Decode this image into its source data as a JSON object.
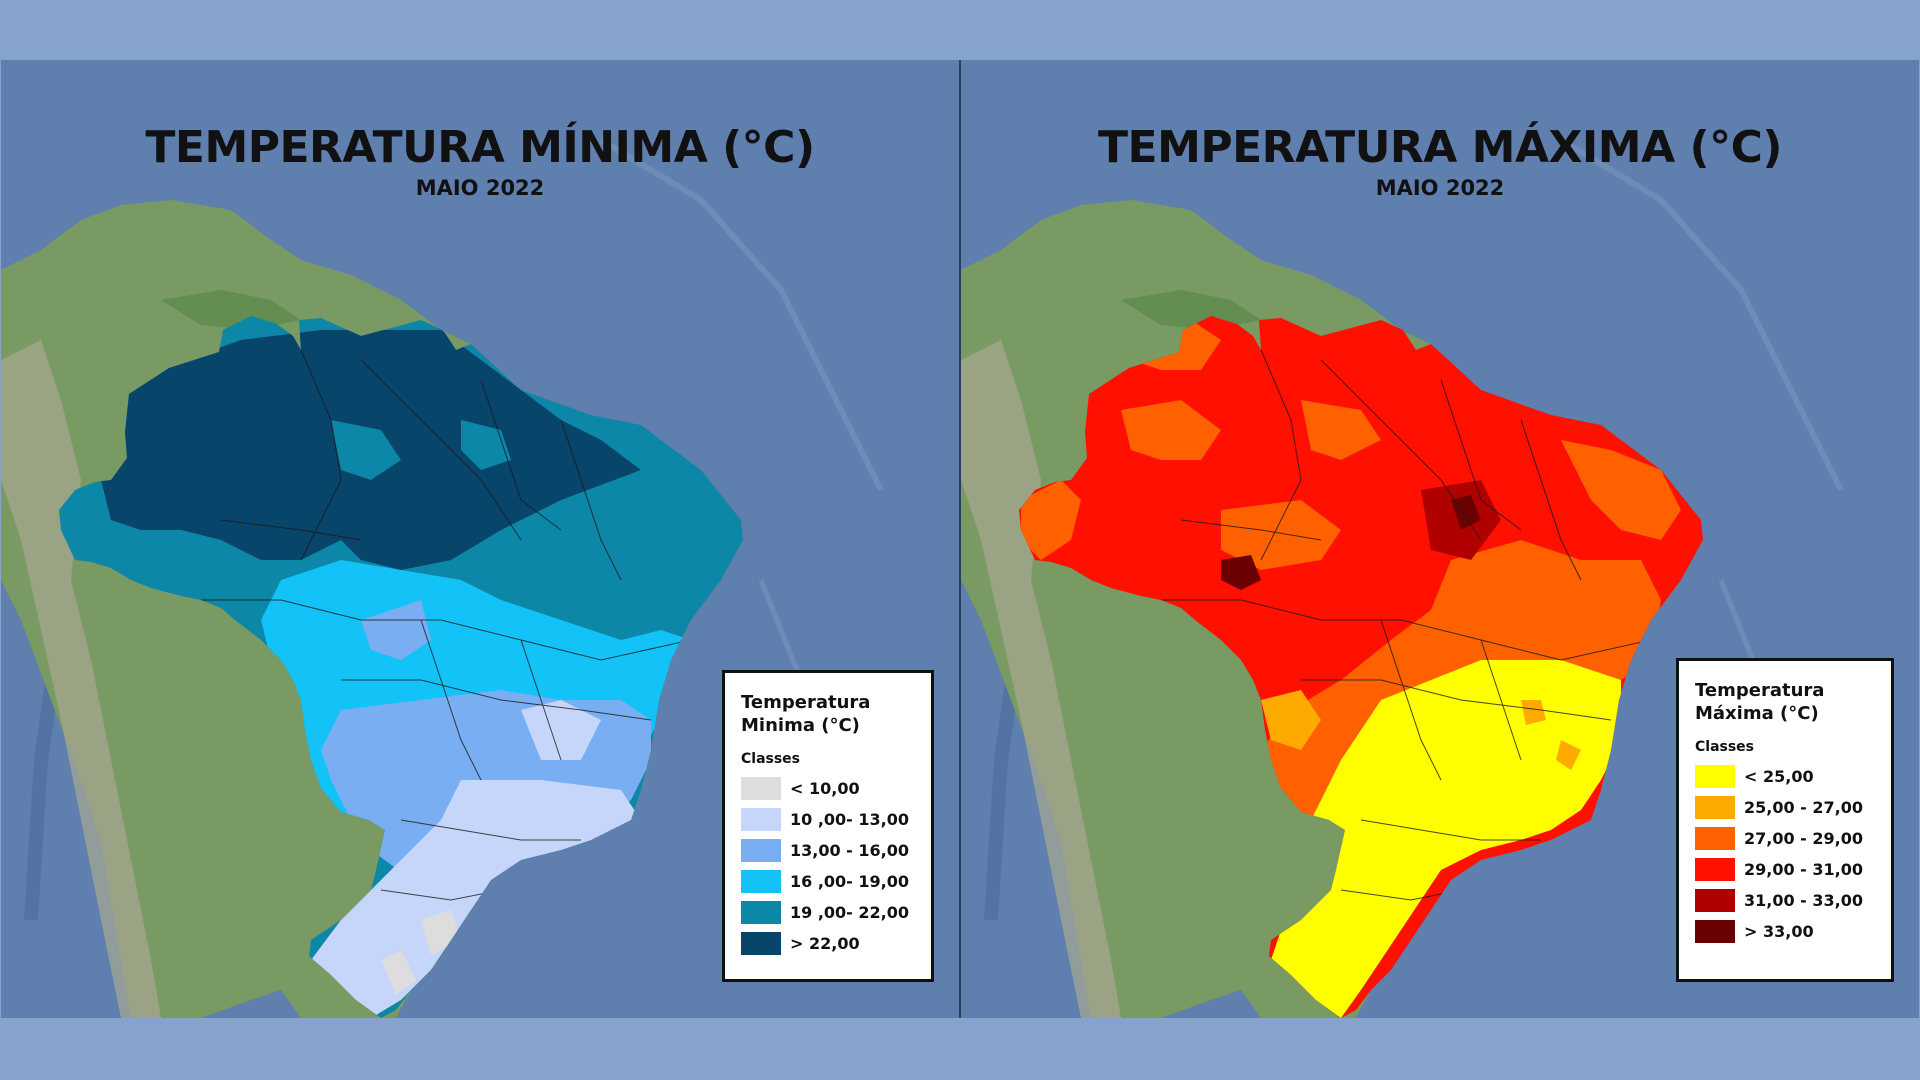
{
  "colors": {
    "background": "#86a3cc",
    "ocean": "#5f7fae",
    "land": "#7a9a63"
  },
  "panels": {
    "min": {
      "title": "TEMPERATURA MÍNIMA (°C)",
      "subtitle": "MAIO 2022",
      "legend": {
        "title": "Temperatura Minima (°C)",
        "classes_label": "Classes",
        "items": [
          {
            "label": "< 10,00",
            "color": "#dddddd"
          },
          {
            "label": "10 ,00- 13,00",
            "color": "#c6d6fb"
          },
          {
            "label": "13,00 - 16,00",
            "color": "#79aef2"
          },
          {
            "label": "16 ,00- 19,00",
            "color": "#13c3f7"
          },
          {
            "label": "19 ,00- 22,00",
            "color": "#0d87a8"
          },
          {
            "label": "> 22,00",
            "color": "#08456b"
          }
        ]
      }
    },
    "max": {
      "title": "TEMPERATURA MÁXIMA (°C)",
      "subtitle": "MAIO 2022",
      "legend": {
        "title": "Temperatura Máxima (°C)",
        "classes_label": "Classes",
        "items": [
          {
            "label": "< 25,00",
            "color": "#ffff00"
          },
          {
            "label": "25,00 - 27,00",
            "color": "#ffaa00"
          },
          {
            "label": "27,00 - 29,00",
            "color": "#ff6000"
          },
          {
            "label": "29,00 - 31,00",
            "color": "#ff1000"
          },
          {
            "label": "31,00 - 33,00",
            "color": "#b00000"
          },
          {
            "label": "> 33,00",
            "color": "#6a0000"
          }
        ]
      }
    }
  }
}
